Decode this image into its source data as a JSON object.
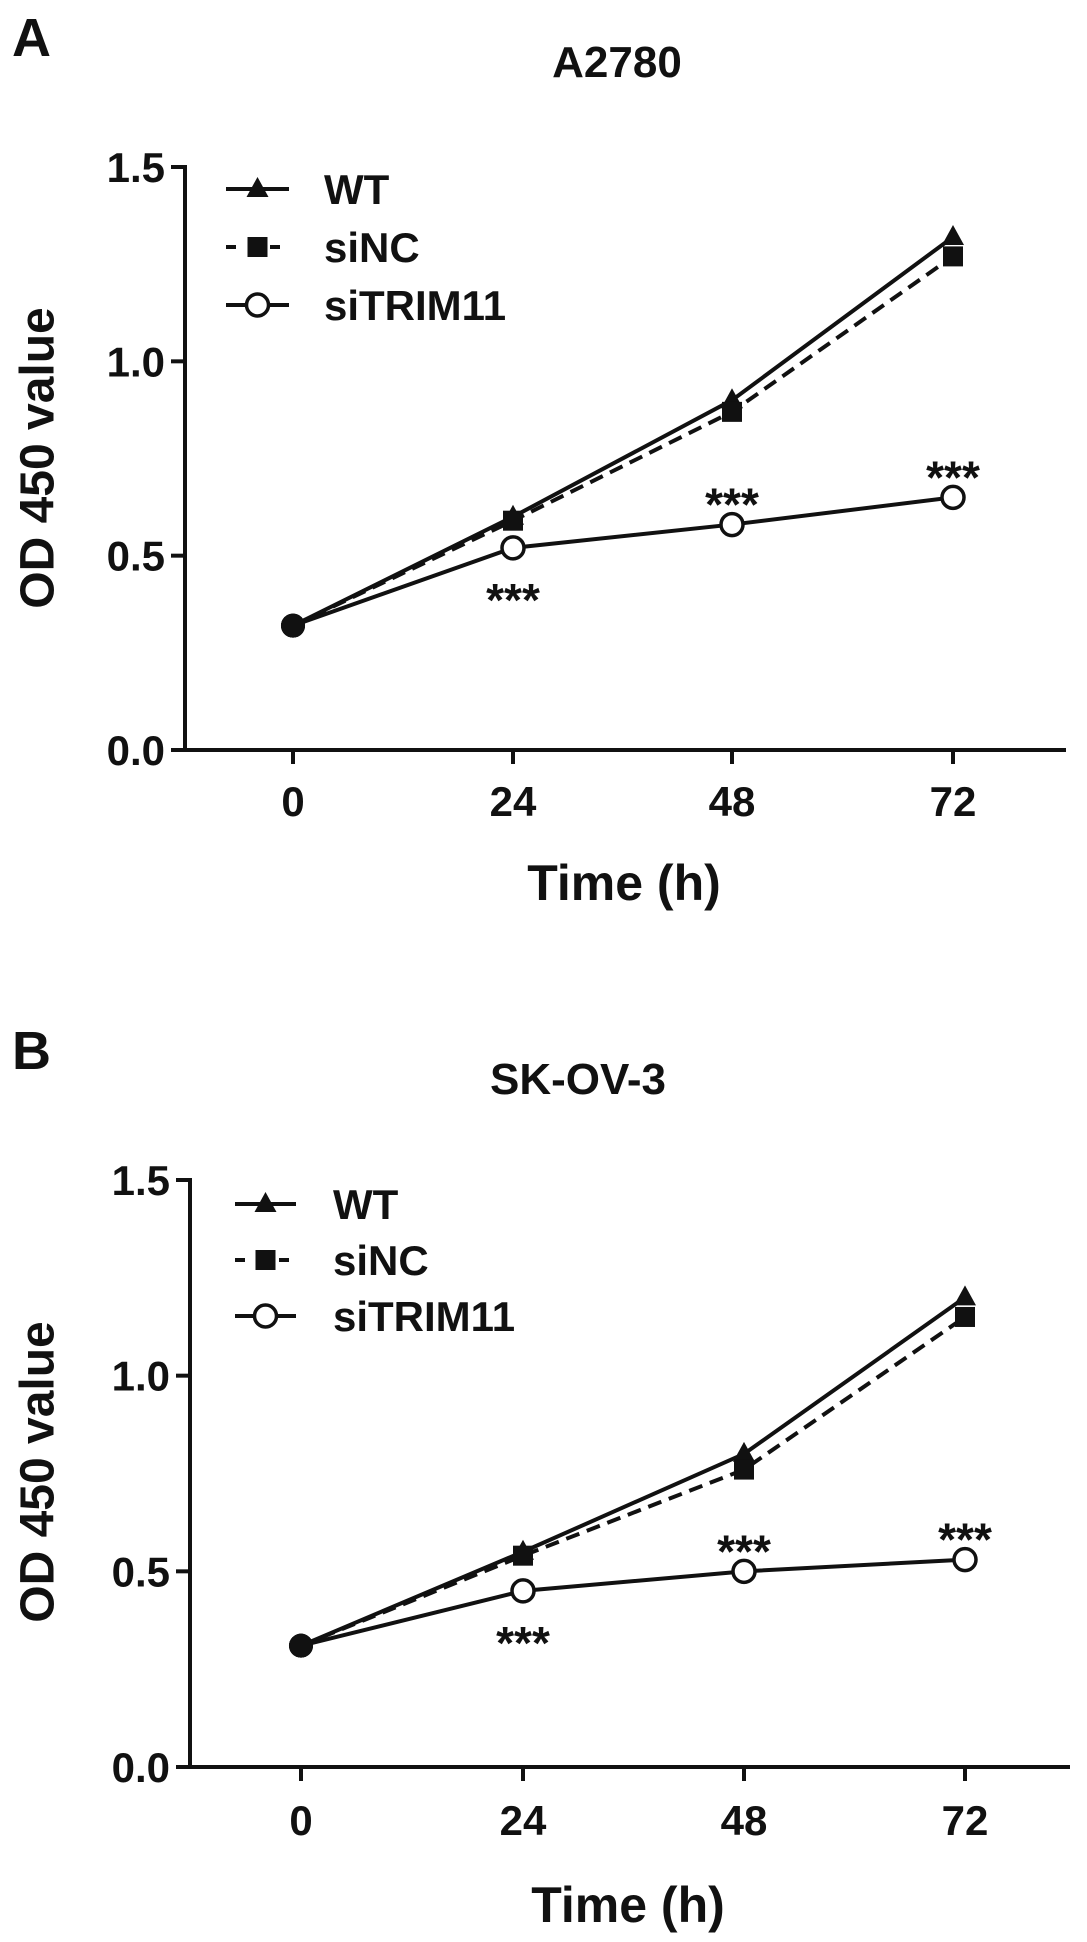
{
  "chart_data": [
    {
      "type": "line",
      "panel_label": "A",
      "title": "A2780",
      "xlabel": "Time (h)",
      "ylabel": "OD 450 value",
      "x": [
        0,
        24,
        48,
        72
      ],
      "xticks": [
        "0",
        "24",
        "48",
        "72"
      ],
      "yticks": [
        "0.0",
        "0.5",
        "1.0",
        "1.5"
      ],
      "ylim": [
        0,
        1.5
      ],
      "grid": false,
      "legend_position": "top-left",
      "series": [
        {
          "name": "WT",
          "marker": "triangle",
          "dash": false,
          "values": [
            0.32,
            0.6,
            0.9,
            1.32
          ]
        },
        {
          "name": "siNC",
          "marker": "square",
          "dash": true,
          "values": [
            0.32,
            0.59,
            0.87,
            1.27
          ]
        },
        {
          "name": "siTRIM11",
          "marker": "open-circle",
          "dash": false,
          "values": [
            0.32,
            0.52,
            0.58,
            0.65
          ]
        }
      ],
      "annotations": [
        {
          "x": 24,
          "text": "***",
          "position": "below"
        },
        {
          "x": 48,
          "text": "***",
          "position": "above"
        },
        {
          "x": 72,
          "text": "***",
          "position": "above"
        }
      ]
    },
    {
      "type": "line",
      "panel_label": "B",
      "title": "SK-OV-3",
      "xlabel": "Time (h)",
      "ylabel": "OD 450 value",
      "x": [
        0,
        24,
        48,
        72
      ],
      "xticks": [
        "0",
        "24",
        "48",
        "72"
      ],
      "yticks": [
        "0.0",
        "0.5",
        "1.0",
        "1.5"
      ],
      "ylim": [
        0,
        1.5
      ],
      "grid": false,
      "legend_position": "top-left",
      "series": [
        {
          "name": "WT",
          "marker": "triangle",
          "dash": false,
          "values": [
            0.31,
            0.55,
            0.8,
            1.2
          ]
        },
        {
          "name": "siNC",
          "marker": "square",
          "dash": true,
          "values": [
            0.31,
            0.54,
            0.76,
            1.15
          ]
        },
        {
          "name": "siTRIM11",
          "marker": "open-circle",
          "dash": false,
          "values": [
            0.31,
            0.45,
            0.5,
            0.53
          ]
        }
      ],
      "annotations": [
        {
          "x": 24,
          "text": "***",
          "position": "below"
        },
        {
          "x": 48,
          "text": "***",
          "position": "above"
        },
        {
          "x": 72,
          "text": "***",
          "position": "above"
        }
      ]
    }
  ]
}
